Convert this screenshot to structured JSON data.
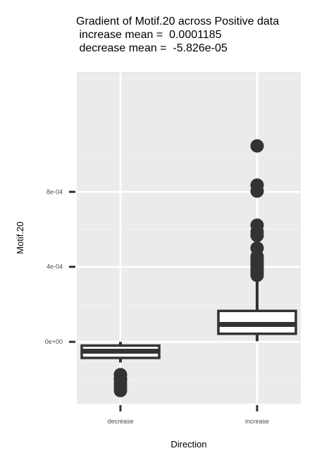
{
  "chart_data": {
    "type": "boxplot",
    "title_lines": [
      "Gradient of Motif.20 across Positive data",
      " increase mean =  0.0001185",
      " decrease mean =  -5.826e-05"
    ],
    "xlabel": "Direction",
    "ylabel": "Motif.20",
    "categories": [
      "decrease",
      "increase"
    ],
    "y_ticks": [
      {
        "value": 0,
        "label": "0e+00"
      },
      {
        "value": 0.0004,
        "label": "4e-04"
      },
      {
        "value": 0.0008,
        "label": "8e-04"
      }
    ],
    "ylim": [
      -0.00033,
      0.00144
    ],
    "grid": true,
    "boxes": [
      {
        "category": "decrease",
        "whisker_low": -0.00011,
        "q1": -8.57e-05,
        "median": -5e-05,
        "q3": -2e-05,
        "whisker_high": 0,
        "outliers": [
          -0.000175,
          -0.000195,
          -0.000205,
          -0.000225,
          -0.000245,
          -0.00026
        ]
      },
      {
        "category": "increase",
        "whisker_low": 3.5e-06,
        "q1": 4.3e-05,
        "median": 9.3e-05,
        "q3": 0.000165,
        "whisker_high": 0.00034,
        "outliers": [
          0.000355,
          0.000368,
          0.00038,
          0.000395,
          0.000405,
          0.000418,
          0.00043,
          0.000442,
          0.000455,
          0.0005,
          0.000567,
          0.000587,
          0.000622,
          0.000804,
          0.000836,
          0.001045
        ]
      }
    ],
    "colors": {
      "panel_bg": "#ebebeb",
      "grid_major": "#ffffff",
      "grid_minor": "#f2f2f2",
      "box_line": "#333333",
      "box_fill": "#ffffff",
      "outlier": "#333333"
    }
  }
}
